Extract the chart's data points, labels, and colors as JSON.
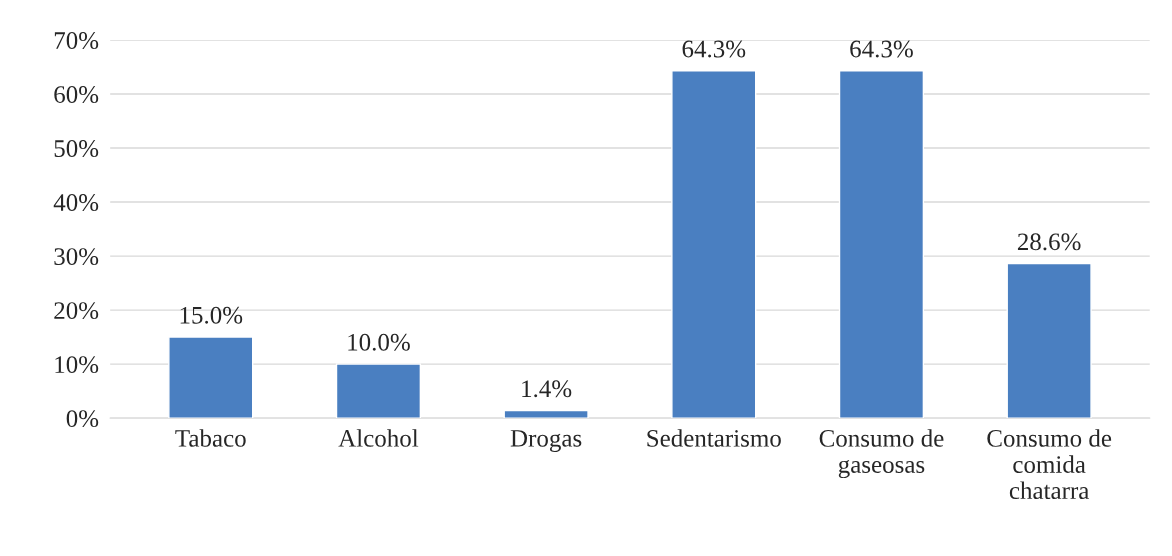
{
  "chart_data": {
    "type": "bar",
    "categories": [
      "Tabaco",
      "Alcohol",
      "Drogas",
      "Sedentarismo",
      "Consumo de\ngaseosas",
      "Consumo de\ncomida\nchatarra"
    ],
    "values": [
      15.0,
      10.0,
      1.4,
      64.3,
      64.3,
      28.6
    ],
    "value_labels": [
      "15.0%",
      "10.0%",
      "1.4%",
      "64.3%",
      "64.3%",
      "28.6%"
    ],
    "color": "#4a7fc1",
    "ylim": [
      0,
      70
    ],
    "yticks": [
      {
        "value": 0,
        "label": "0%"
      },
      {
        "value": 10,
        "label": "10%"
      },
      {
        "value": 20,
        "label": "20%"
      },
      {
        "value": 30,
        "label": "30%"
      },
      {
        "value": 40,
        "label": "40%"
      },
      {
        "value": 50,
        "label": "50%"
      },
      {
        "value": 60,
        "label": "60%"
      },
      {
        "value": 70,
        "label": "70%"
      }
    ],
    "grid": "y",
    "legend": false
  }
}
